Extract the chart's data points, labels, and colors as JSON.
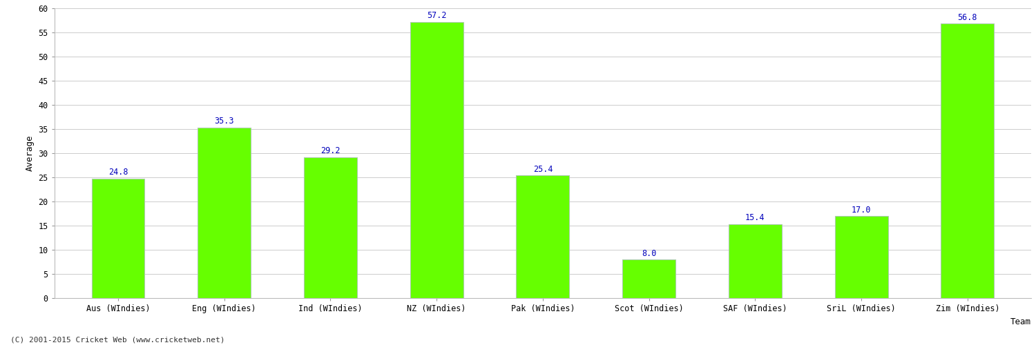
{
  "categories": [
    "Aus (WIndies)",
    "Eng (WIndies)",
    "Ind (WIndies)",
    "NZ (WIndies)",
    "Pak (WIndies)",
    "Scot (WIndies)",
    "SAF (WIndies)",
    "SriL (WIndies)",
    "Zim (WIndies)"
  ],
  "values": [
    24.8,
    35.3,
    29.2,
    57.2,
    25.4,
    8.0,
    15.4,
    17.0,
    56.8
  ],
  "bar_color": "#66ff00",
  "bar_edge_color": "#aaddaa",
  "value_color": "#0000bb",
  "xlabel": "Team",
  "ylabel": "Average",
  "ylim": [
    0,
    60
  ],
  "yticks": [
    0,
    5,
    10,
    15,
    20,
    25,
    30,
    35,
    40,
    45,
    50,
    55,
    60
  ],
  "grid_color": "#cccccc",
  "background_color": "#ffffff",
  "tick_fontsize": 8.5,
  "label_fontsize": 9,
  "value_fontsize": 8.5,
  "footer": "(C) 2001-2015 Cricket Web (www.cricketweb.net)"
}
